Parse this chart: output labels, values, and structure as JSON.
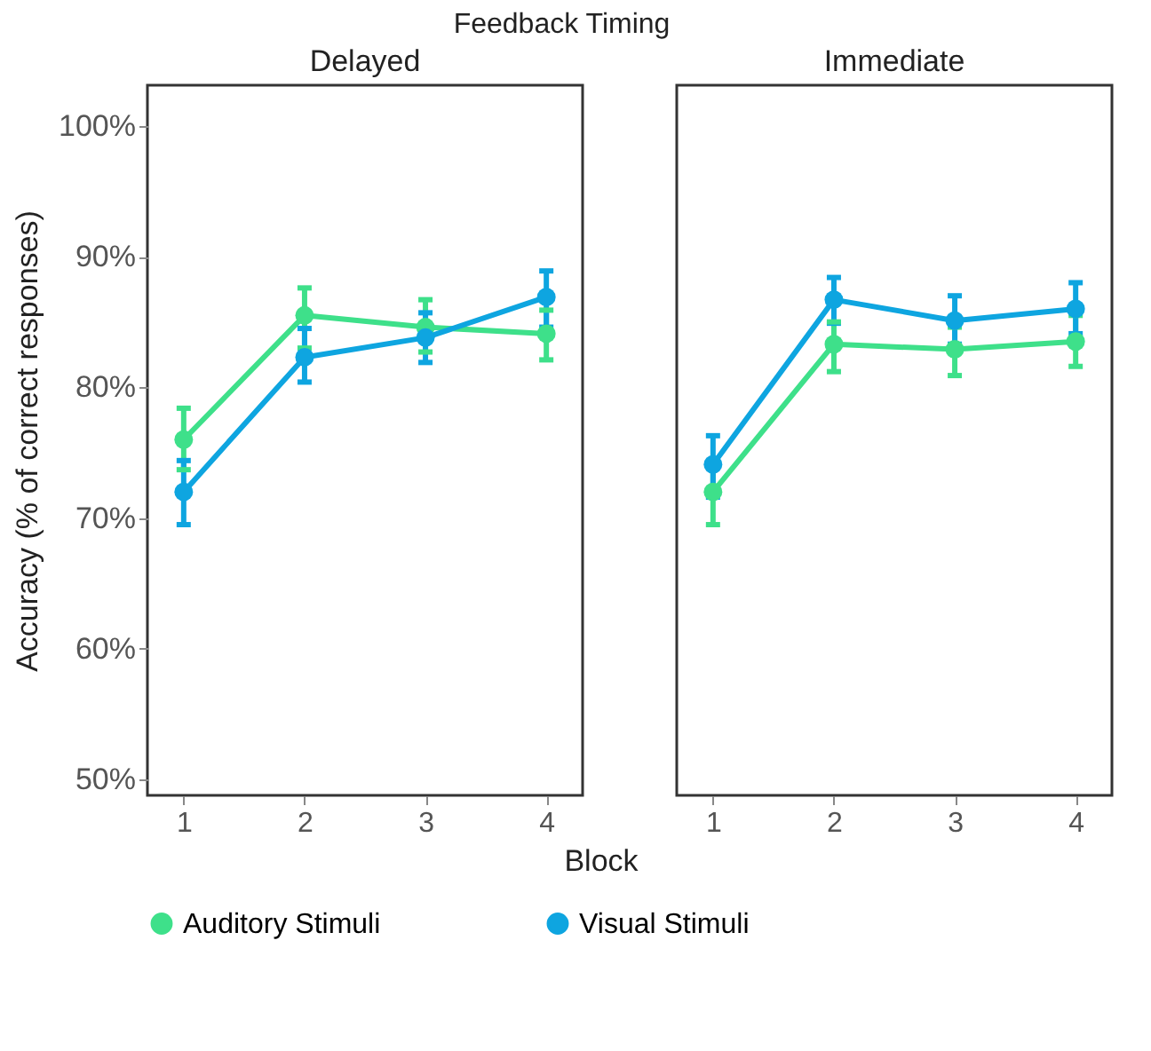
{
  "chart_data": [
    {
      "type": "line",
      "title": "Delayed",
      "subtitle": "Feedback Timing",
      "xlabel": "Block",
      "ylabel": "Accuracy (% of correct responses)",
      "categories": [
        "1",
        "2",
        "3",
        "4"
      ],
      "ylim": [
        48.8,
        103.1
      ],
      "yticks": [
        {
          "value": 50,
          "label": "50%"
        },
        {
          "value": 60,
          "label": "60%"
        },
        {
          "value": 70,
          "label": "70%"
        },
        {
          "value": 80,
          "label": "80%"
        },
        {
          "value": 90,
          "label": "90%"
        },
        {
          "value": 100,
          "label": "100%"
        }
      ],
      "grid": false,
      "legend": "bottom",
      "marker": "circle",
      "line_style": "solid",
      "series": [
        {
          "name": "Auditory Stimuli",
          "color": "#3ee08a",
          "values": [
            76.0,
            85.5,
            84.6,
            84.1
          ],
          "errors": [
            [
              73.7,
              78.4
            ],
            [
              83.0,
              87.6
            ],
            [
              82.7,
              86.7
            ],
            [
              82.1,
              85.9
            ]
          ]
        },
        {
          "name": "Visual Stimuli",
          "color": "#0ea5e0",
          "values": [
            72.0,
            82.3,
            83.8,
            86.9
          ],
          "errors": [
            [
              69.5,
              74.4
            ],
            [
              80.4,
              84.5
            ],
            [
              81.9,
              85.7
            ],
            [
              84.6,
              88.9
            ]
          ]
        }
      ]
    },
    {
      "type": "line",
      "title": "Immediate",
      "categories": [
        "1",
        "2",
        "3",
        "4"
      ],
      "ylim": [
        48.8,
        103.1
      ],
      "grid": false,
      "tick_labels": "x",
      "marker": "circle",
      "line_style": "solid",
      "series": [
        {
          "name": "Auditory Stimuli",
          "color": "#3ee08a",
          "values": [
            72.0,
            83.3,
            82.9,
            83.5
          ],
          "errors": [
            [
              69.5,
              74.2
            ],
            [
              81.2,
              85.0
            ],
            [
              80.9,
              84.6
            ],
            [
              81.6,
              85.5
            ]
          ]
        },
        {
          "name": "Visual Stimuli",
          "color": "#0ea5e0",
          "values": [
            74.1,
            86.7,
            85.1,
            86.0
          ],
          "errors": [
            [
              71.6,
              76.3
            ],
            [
              84.9,
              88.4
            ],
            [
              83.3,
              87.0
            ],
            [
              84.1,
              88.0
            ]
          ]
        }
      ]
    }
  ]
}
